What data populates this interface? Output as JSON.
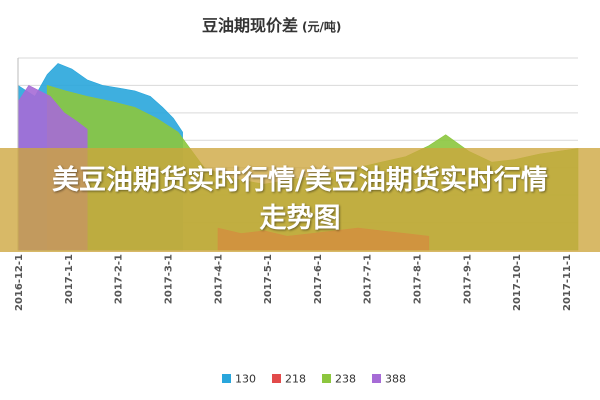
{
  "chart_data": {
    "type": "area",
    "title": "豆油期现价差",
    "unit": "(元/吨)",
    "x_ticks": [
      "2016-12-1",
      "2017-1-1",
      "2017-2-1",
      "2017-3-1",
      "2017-4-1",
      "2017-5-1",
      "2017-6-1",
      "2017-7-1",
      "2017-8-1",
      "2017-9-1",
      "2017-10-1",
      "2017-11-1"
    ],
    "xlim": [
      "2016-12-01",
      "2017-11-30"
    ],
    "grid": true,
    "legend_position": "bottom",
    "series": [
      {
        "name": "130",
        "color": "#29A6DC",
        "points": [
          [
            "2016-12-01",
            600
          ],
          [
            "2016-12-12",
            560
          ],
          [
            "2016-12-20",
            640
          ],
          [
            "2016-12-27",
            680
          ],
          [
            "2017-01-05",
            660
          ],
          [
            "2017-01-15",
            620
          ],
          [
            "2017-01-25",
            600
          ],
          [
            "2017-02-05",
            590
          ],
          [
            "2017-02-15",
            580
          ],
          [
            "2017-02-25",
            560
          ],
          [
            "2017-03-05",
            520
          ],
          [
            "2017-03-12",
            480
          ],
          [
            "2017-03-18",
            430
          ]
        ]
      },
      {
        "name": "218",
        "color": "#E24A4A",
        "points": [
          [
            "2017-04-10",
            80
          ],
          [
            "2017-04-25",
            60
          ],
          [
            "2017-05-10",
            70
          ],
          [
            "2017-05-25",
            50
          ],
          [
            "2017-06-10",
            60
          ],
          [
            "2017-06-25",
            70
          ],
          [
            "2017-07-10",
            80
          ],
          [
            "2017-07-25",
            70
          ],
          [
            "2017-08-10",
            60
          ],
          [
            "2017-08-25",
            50
          ]
        ]
      },
      {
        "name": "238",
        "color": "#8CC63E",
        "points": [
          [
            "2016-12-20",
            600
          ],
          [
            "2017-01-01",
            580
          ],
          [
            "2017-01-15",
            560
          ],
          [
            "2017-02-01",
            540
          ],
          [
            "2017-02-15",
            520
          ],
          [
            "2017-03-01",
            480
          ],
          [
            "2017-03-15",
            430
          ],
          [
            "2017-04-01",
            300
          ],
          [
            "2017-04-20",
            260
          ],
          [
            "2017-05-10",
            240
          ],
          [
            "2017-06-01",
            260
          ],
          [
            "2017-06-20",
            280
          ],
          [
            "2017-07-10",
            300
          ],
          [
            "2017-07-25",
            320
          ],
          [
            "2017-08-10",
            340
          ],
          [
            "2017-08-25",
            380
          ],
          [
            "2017-09-05",
            420
          ],
          [
            "2017-09-20",
            360
          ],
          [
            "2017-10-05",
            320
          ],
          [
            "2017-10-20",
            330
          ],
          [
            "2017-11-05",
            350
          ],
          [
            "2017-11-30",
            370
          ]
        ]
      },
      {
        "name": "388",
        "color": "#A66BD6",
        "points": [
          [
            "2016-12-01",
            540
          ],
          [
            "2016-12-08",
            600
          ],
          [
            "2016-12-15",
            580
          ],
          [
            "2016-12-22",
            560
          ],
          [
            "2016-12-31",
            500
          ],
          [
            "2017-01-08",
            470
          ],
          [
            "2017-01-15",
            440
          ]
        ]
      }
    ]
  },
  "banner": {
    "text": "美豆油期货实时行情/美豆油期货实时行情走势图"
  }
}
